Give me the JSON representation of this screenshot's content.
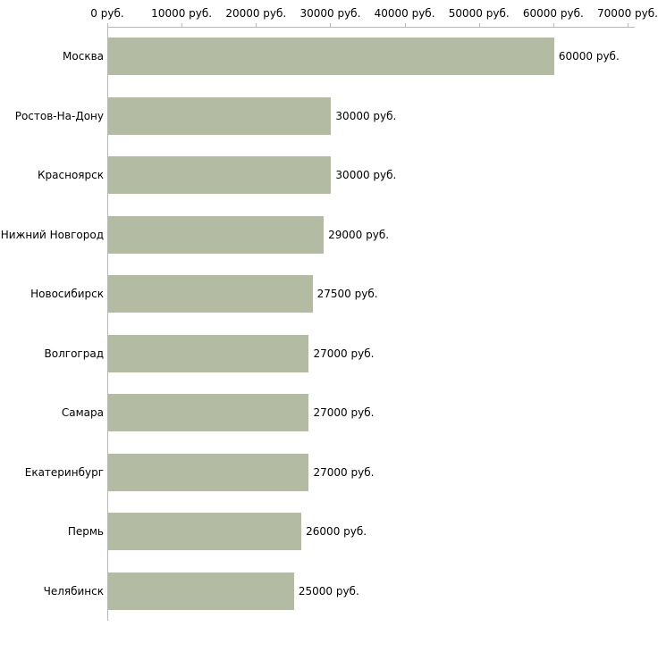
{
  "chart_data": {
    "type": "bar",
    "orientation": "horizontal",
    "title": "",
    "xlabel": "",
    "ylabel": "",
    "unit": "руб.",
    "categories": [
      "Москва",
      "Ростов-На-Дону",
      "Красноярск",
      "Нижний Новгород",
      "Новосибирск",
      "Волгоград",
      "Самара",
      "Екатеринбург",
      "Пермь",
      "Челябинск"
    ],
    "values": [
      60000,
      30000,
      30000,
      29000,
      27500,
      27000,
      27000,
      27000,
      26000,
      25000
    ],
    "value_labels": [
      "60000 руб.",
      "30000 руб.",
      "30000 руб.",
      "29000 руб.",
      "27500 руб.",
      "27000 руб.",
      "27000 руб.",
      "27000 руб.",
      "26000 руб.",
      "25000 руб."
    ],
    "x_ticks": [
      0,
      10000,
      20000,
      30000,
      40000,
      50000,
      60000,
      70000
    ],
    "x_tick_labels": [
      "0 руб.",
      "10000 руб.",
      "20000 руб.",
      "30000 руб.",
      "40000 руб.",
      "50000 руб.",
      "60000 руб.",
      "70000 руб."
    ],
    "xlim": [
      0,
      70000
    ],
    "grid": false,
    "legend": "none",
    "bar_color": "#b3bca2",
    "axis_color": "#b8b8b8",
    "text_color": "#000000"
  }
}
